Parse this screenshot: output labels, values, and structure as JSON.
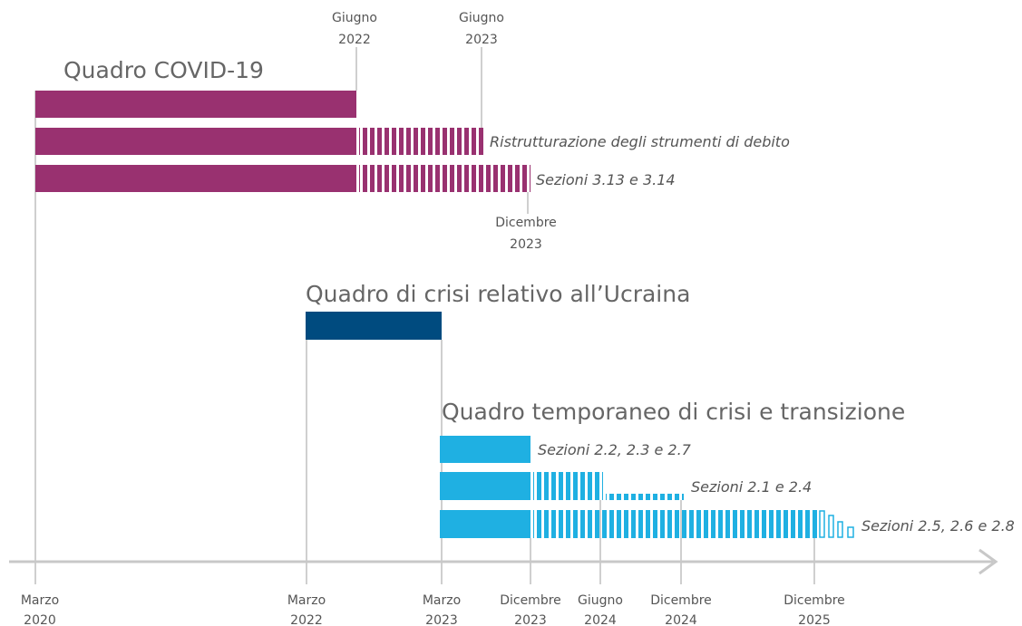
{
  "groups": [
    {
      "title": "Quadro COVID-19",
      "labels": [
        "Ristrutturazione degli strumenti di debito",
        "Sezioni 3.13 e 3.14"
      ]
    },
    {
      "title": "Quadro di crisi relativo all’Ucraina"
    },
    {
      "title": "Quadro temporaneo di crisi e transizione",
      "labels": [
        "Sezioni 2.2, 2.3 e 2.7",
        "Sezioni 2.1 e 2.4",
        "Sezioni 2.5, 2.6 e 2.8"
      ]
    }
  ],
  "top_dates": [
    {
      "month": "Giugno",
      "year": "2022"
    },
    {
      "month": "Giugno",
      "year": "2023"
    },
    {
      "month": "Dicembre",
      "year": "2023"
    }
  ],
  "axis_dates": [
    {
      "month": "Marzo",
      "year": "2020"
    },
    {
      "month": "Marzo",
      "year": "2022"
    },
    {
      "month": "Marzo",
      "year": "2023"
    },
    {
      "month": "Dicembre",
      "year": "2023"
    },
    {
      "month": "Giugno",
      "year": "2024"
    },
    {
      "month": "Dicembre",
      "year": "2024"
    },
    {
      "month": "Dicembre",
      "year": "2025"
    }
  ]
}
